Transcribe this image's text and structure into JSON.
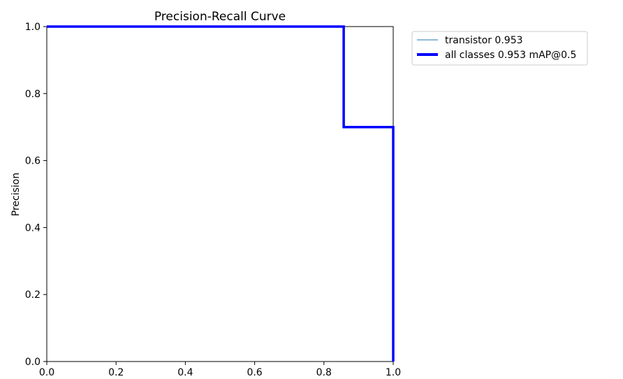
{
  "chart_data": {
    "type": "line",
    "title": "Precision-Recall Curve",
    "xlabel": "",
    "ylabel": "Precision",
    "xlim": [
      0.0,
      1.0
    ],
    "ylim": [
      0.0,
      1.0
    ],
    "xticks": [
      "0.0",
      "0.2",
      "0.4",
      "0.6",
      "0.8",
      "1.0"
    ],
    "yticks": [
      "0.0",
      "0.2",
      "0.4",
      "0.6",
      "0.8",
      "1.0"
    ],
    "grid": false,
    "legend_position": "outside-right-top",
    "series": [
      {
        "name": "transistor 0.953",
        "color": "#1f77b4",
        "line_width": "thin",
        "x": [
          0.0,
          0.857,
          0.857,
          1.0,
          1.0
        ],
        "y": [
          1.0,
          1.0,
          0.7,
          0.7,
          0.0
        ]
      },
      {
        "name": "all classes 0.953 mAP@0.5",
        "color": "#0000ff",
        "line_width": "thick",
        "x": [
          0.0,
          0.857,
          0.857,
          1.0,
          1.0
        ],
        "y": [
          1.0,
          1.0,
          0.7,
          0.7,
          0.0
        ]
      }
    ]
  }
}
